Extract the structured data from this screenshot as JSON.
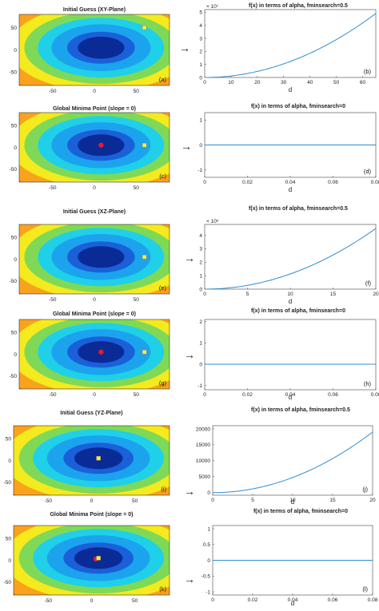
{
  "chart_data": [
    {
      "id": "a",
      "type": "heatmap",
      "title": "Initial Guess (XY-Plane)",
      "panel_label": "(a)",
      "xticks": [
        "-50",
        "0",
        "50"
      ],
      "yticks": [
        "50",
        "0",
        "-50"
      ],
      "xlim": [
        -90,
        90
      ],
      "ylim": [
        -80,
        80
      ],
      "initial_guess": [
        60,
        50
      ],
      "global_minimum": null
    },
    {
      "id": "b",
      "type": "line",
      "title": "f(x) in terms of alpha, fminsearch=0.5",
      "panel_label": "(b)",
      "xlabel": "d",
      "xticks": [
        "0",
        "10",
        "20",
        "30",
        "40",
        "50",
        "60"
      ],
      "yticks": [
        "0",
        "1",
        "2",
        "3",
        "4",
        "5"
      ],
      "exponent": "× 10⁷",
      "xlim": [
        0,
        65
      ],
      "ylim": [
        0,
        5.2
      ],
      "curve": "quadratic",
      "endpoint": [
        65,
        4.9
      ]
    },
    {
      "id": "c",
      "type": "heatmap",
      "title": "Global Minima Point (slope = 0)",
      "panel_label": "(c)",
      "xticks": [
        "-50",
        "0",
        "50"
      ],
      "yticks": [
        "50",
        "0",
        "-50"
      ],
      "xlim": [
        -90,
        90
      ],
      "ylim": [
        -80,
        80
      ],
      "initial_guess": [
        60,
        5
      ],
      "global_minimum": [
        8,
        5
      ]
    },
    {
      "id": "d",
      "type": "line",
      "title": "f(x) in terms of alpha, fminsearch=0",
      "panel_label": "(d)",
      "xlabel": "d",
      "xticks": [
        "0",
        "0.02",
        "0.04",
        "0.06",
        "0.08"
      ],
      "yticks": [
        "1",
        "0",
        "-1"
      ],
      "exponent": "",
      "xlim": [
        0,
        0.08
      ],
      "ylim": [
        -1.3,
        1.3
      ],
      "curve": "flat",
      "endpoint": [
        0.08,
        0
      ]
    },
    {
      "id": "e",
      "type": "heatmap",
      "title": "Initial Guess (XZ-Plane)",
      "panel_label": "(e)",
      "xticks": [
        "-50",
        "0",
        "50"
      ],
      "yticks": [
        "50",
        "0",
        "-50"
      ],
      "xlim": [
        -90,
        90
      ],
      "ylim": [
        -80,
        80
      ],
      "initial_guess": [
        60,
        5
      ],
      "global_minimum": null
    },
    {
      "id": "f",
      "type": "line",
      "title": "f(x) in terms of alpha, fminsearch=0.5",
      "panel_label": "(f)",
      "xlabel": "d",
      "xticks": [
        "0",
        "5",
        "10",
        "15",
        "20"
      ],
      "yticks": [
        "0",
        "1",
        "2",
        "3",
        "4"
      ],
      "exponent": "× 10⁶",
      "xlim": [
        0,
        20
      ],
      "ylim": [
        0,
        4.8
      ],
      "curve": "quadratic",
      "endpoint": [
        20,
        4.5
      ]
    },
    {
      "id": "g",
      "type": "heatmap",
      "title": "Global Minima Point (slope = 0)",
      "panel_label": "(g)",
      "xticks": [
        "-50",
        "0",
        "50"
      ],
      "yticks": [
        "50",
        "0",
        "-50"
      ],
      "xlim": [
        -90,
        90
      ],
      "ylim": [
        -80,
        80
      ],
      "initial_guess": [
        60,
        5
      ],
      "global_minimum": [
        8,
        5
      ]
    },
    {
      "id": "h",
      "type": "line",
      "title": "f(x) in terms of alpha, fminsearch=0",
      "panel_label": "(h)",
      "xlabel": "d",
      "xticks": [
        "0",
        "0.02",
        "0.04",
        "0.06",
        "0.08"
      ],
      "yticks": [
        "2",
        "1",
        "0",
        "-1"
      ],
      "exponent": "",
      "xlim": [
        0,
        0.08
      ],
      "ylim": [
        -1.2,
        2.1
      ],
      "curve": "flat",
      "endpoint": [
        0.08,
        0
      ]
    },
    {
      "id": "i",
      "type": "heatmap",
      "title": "Initial Guess (YZ-Plane)",
      "panel_label": "(i)",
      "xticks": [
        "-50",
        "0",
        "50"
      ],
      "yticks": [
        "50",
        "0",
        "-50"
      ],
      "xlim": [
        -90,
        90
      ],
      "ylim": [
        -80,
        80
      ],
      "initial_guess": [
        8,
        5
      ],
      "global_minimum": null
    },
    {
      "id": "j",
      "type": "line",
      "title": "f(x) in terms of alpha, fminsearch=0.5",
      "panel_label": "(j)",
      "xlabel": "d",
      "xticks": [
        "0",
        "5",
        "10",
        "15",
        "20"
      ],
      "yticks": [
        "20000",
        "15000",
        "10000",
        "5000",
        "0"
      ],
      "exponent": "",
      "xlim": [
        0,
        20
      ],
      "ylim": [
        -800,
        21000
      ],
      "curve": "quadratic",
      "endpoint": [
        20,
        19000
      ]
    },
    {
      "id": "k",
      "type": "heatmap",
      "title": "Global Minima Point (slope = 0)",
      "panel_label": "(k)",
      "xticks": [
        "-50",
        "0",
        "50"
      ],
      "yticks": [
        "50",
        "0",
        "-50"
      ],
      "xlim": [
        -90,
        90
      ],
      "ylim": [
        -80,
        80
      ],
      "initial_guess": [
        8,
        5
      ],
      "global_minimum": [
        5,
        3
      ]
    },
    {
      "id": "l",
      "type": "line",
      "title": "f(x) in terms of alpha, fminsearch=0",
      "panel_label": "(l)",
      "xlabel": "d",
      "xticks": [
        "0",
        "0.02",
        "0.04",
        "0.06",
        "0.08"
      ],
      "yticks": [
        "1",
        "0.5",
        "0",
        "-0.5",
        "-1"
      ],
      "exponent": "",
      "xlim": [
        0,
        0.08
      ],
      "ylim": [
        -1.1,
        1.1
      ],
      "curve": "flat",
      "endpoint": [
        0.08,
        0
      ]
    }
  ],
  "arrow_glyph": "→",
  "colors": {
    "contours": [
      "#b8141e",
      "#ef3a1f",
      "#f9a21c",
      "#f4ea1e",
      "#7fd957",
      "#1fd0e8",
      "#1ca3ee",
      "#1a60d8",
      "#0a2a96"
    ],
    "line": "#2f8cd1",
    "global_min": "#e8192c",
    "initial_guess": "#f6ee3a"
  }
}
